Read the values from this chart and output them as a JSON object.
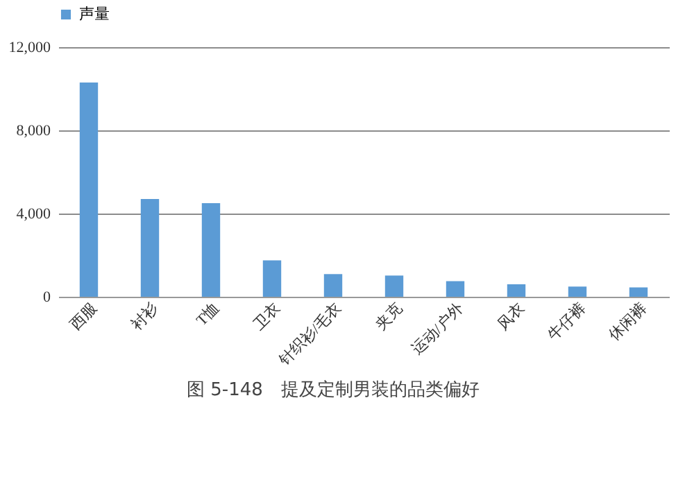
{
  "chart_data": {
    "type": "bar",
    "categories": [
      "西服",
      "衬衫",
      "T恤",
      "卫衣",
      "针织衫/毛衣",
      "夹克",
      "运动/户外",
      "风衣",
      "牛仔裤",
      "休闲裤"
    ],
    "series": [
      {
        "name": "声量",
        "color": "#5b9bd5",
        "values": [
          10300,
          4700,
          4500,
          1750,
          1090,
          1020,
          750,
          600,
          490,
          450
        ]
      }
    ],
    "ylim": [
      0,
      12000
    ],
    "yticks": [
      0,
      {
        "value": 4000,
        "label": "4,000"
      },
      {
        "value": 8000,
        "label": "8,000"
      },
      {
        "value": 12000,
        "label": "12,000"
      }
    ],
    "grid": "y",
    "legend": "top",
    "annotations": [
      "图 5-148　提及定制男装的品类偏好"
    ]
  }
}
